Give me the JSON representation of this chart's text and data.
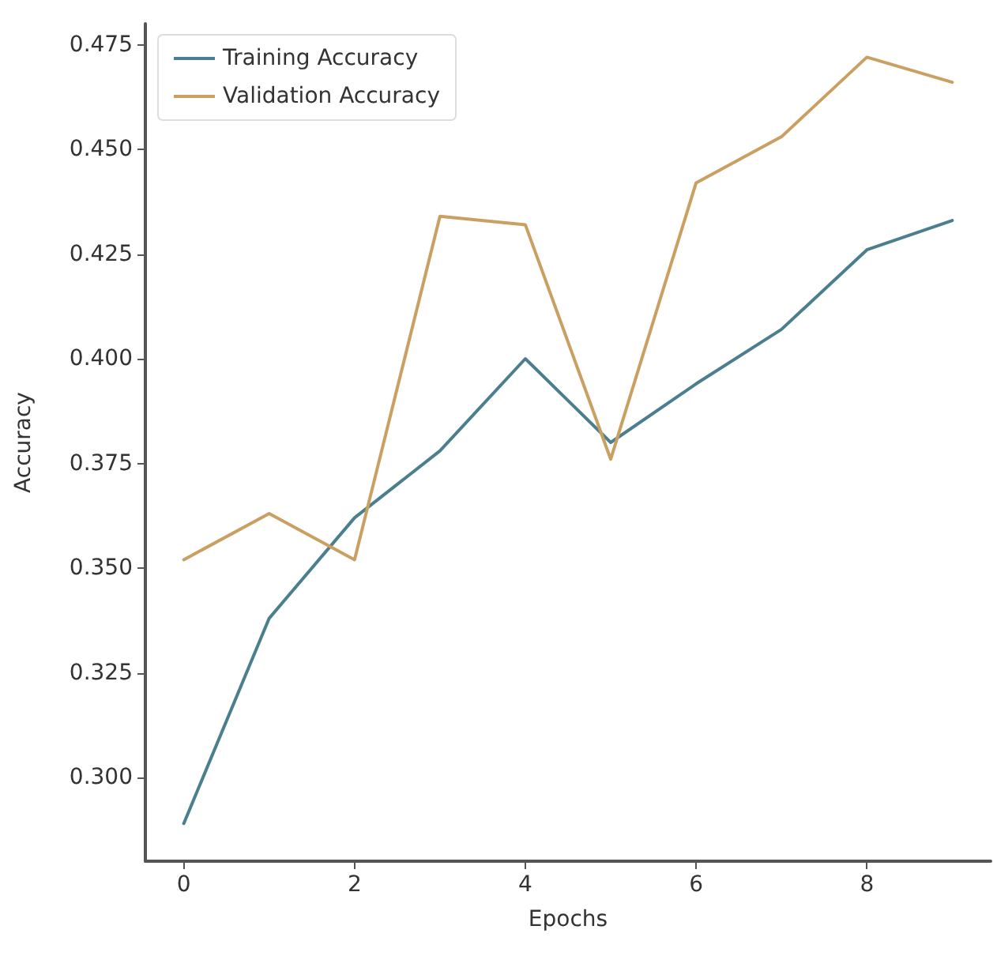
{
  "chart_data": {
    "type": "line",
    "xlabel": "Epochs",
    "ylabel": "Accuracy",
    "x": [
      0,
      1,
      2,
      3,
      4,
      5,
      6,
      7,
      8,
      9
    ],
    "series": [
      {
        "name": "Training Accuracy",
        "color": "#4b7f8e",
        "values": [
          0.289,
          0.338,
          0.362,
          0.378,
          0.4,
          0.38,
          0.394,
          0.407,
          0.426,
          0.433
        ]
      },
      {
        "name": "Validation Accuracy",
        "color": "#c9a062",
        "values": [
          0.352,
          0.363,
          0.352,
          0.434,
          0.432,
          0.376,
          0.442,
          0.453,
          0.472,
          0.466
        ]
      }
    ],
    "xlim": [
      -0.45,
      9.45
    ],
    "xticks": [
      0,
      2,
      4,
      6,
      8
    ],
    "ylim": [
      0.28,
      0.48
    ],
    "yticks": [
      {
        "value": 0.3,
        "label": "0.300"
      },
      {
        "value": 0.325,
        "label": "0.325"
      },
      {
        "value": 0.35,
        "label": "0.350"
      },
      {
        "value": 0.375,
        "label": "0.375"
      },
      {
        "value": 0.4,
        "label": "0.400"
      },
      {
        "value": 0.425,
        "label": "0.425"
      },
      {
        "value": 0.45,
        "label": "0.450"
      },
      {
        "value": 0.475,
        "label": "0.475"
      }
    ],
    "legend": "top left",
    "grid": false,
    "marker": "none",
    "line_style": "solid"
  }
}
